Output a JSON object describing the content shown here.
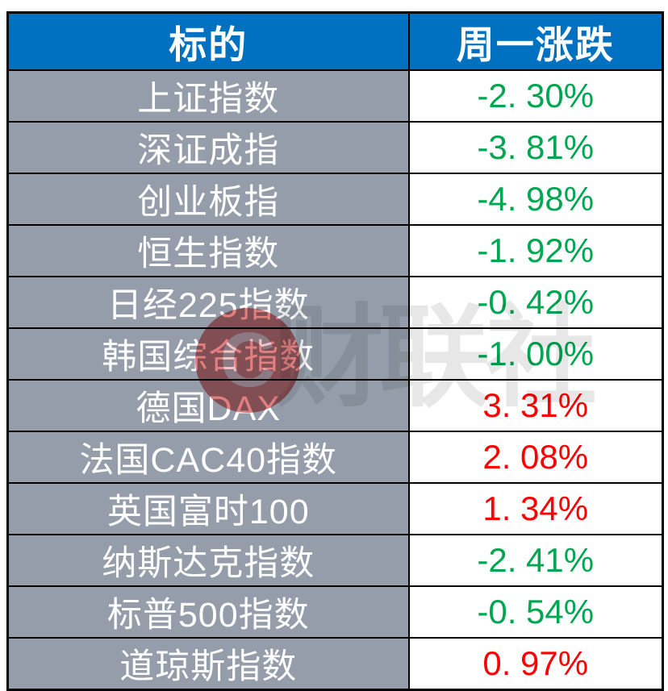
{
  "table": {
    "header": {
      "target": "标的",
      "change": "周一涨跌"
    },
    "rows": [
      {
        "name": "上证指数",
        "change": "-2.30%",
        "direction": "down"
      },
      {
        "name": "深证成指",
        "change": "-3.81%",
        "direction": "down"
      },
      {
        "name": "创业板指",
        "change": "-4.98%",
        "direction": "down"
      },
      {
        "name": "恒生指数",
        "change": "-1.92%",
        "direction": "down"
      },
      {
        "name": "日经225指数",
        "change": "-0.42%",
        "direction": "down"
      },
      {
        "name": "韩国综合指数",
        "change": "-1.00%",
        "direction": "down"
      },
      {
        "name": "德国DAX",
        "change": "3.31%",
        "direction": "up"
      },
      {
        "name": "法国CAC40指数",
        "change": "2.08%",
        "direction": "up"
      },
      {
        "name": "英国富时100",
        "change": "1.34%",
        "direction": "up"
      },
      {
        "name": "纳斯达克指数",
        "change": "-2.41%",
        "direction": "down"
      },
      {
        "name": "标普500指数",
        "change": "-0.54%",
        "direction": "down"
      },
      {
        "name": "道琼斯指数",
        "change": "0.97%",
        "direction": "up"
      }
    ]
  },
  "watermark": {
    "logo_letter": "C",
    "text": "财联社"
  },
  "colors": {
    "header_bg": "#0070C0",
    "header_text": "#FFFFFF",
    "label_bg": "#949DA9",
    "label_text": "#FFFFFF",
    "up": "#FF0000",
    "down": "#00A650",
    "border": "#000000",
    "watermark_red": "#C00000",
    "watermark_gray": "#E7E7E7"
  },
  "chart_data": {
    "type": "table",
    "title": "周一全球股指涨跌",
    "columns": [
      "标的",
      "周一涨跌"
    ],
    "categories": [
      "上证指数",
      "深证成指",
      "创业板指",
      "恒生指数",
      "日经225指数",
      "韩国综合指数",
      "德国DAX",
      "法国CAC40指数",
      "英国富时100",
      "纳斯达克指数",
      "标普500指数",
      "道琼斯指数"
    ],
    "values": [
      -2.3,
      -3.81,
      -4.98,
      -1.92,
      -0.42,
      -1.0,
      3.31,
      2.08,
      1.34,
      -2.41,
      -0.54,
      0.97
    ],
    "units": "%",
    "color_convention": "red = up, green = down"
  }
}
